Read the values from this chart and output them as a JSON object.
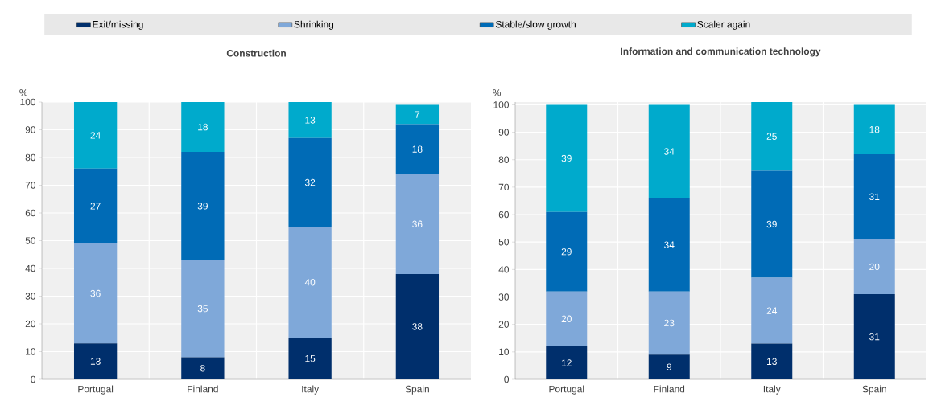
{
  "chart_data": [
    {
      "type": "bar",
      "stacked": true,
      "title": "Construction",
      "ylabel": "%",
      "categories": [
        "Portugal",
        "Finland",
        "Italy",
        "Spain"
      ],
      "series": [
        {
          "name": "Exit/missing",
          "color": "#002f6c",
          "values": [
            13,
            8,
            15,
            38
          ]
        },
        {
          "name": "Shrinking",
          "color": "#7fa8d9",
          "values": [
            36,
            35,
            40,
            36
          ]
        },
        {
          "name": "Stable/slow growth",
          "color": "#006bb6",
          "values": [
            27,
            39,
            32,
            18
          ]
        },
        {
          "name": "Scaler again",
          "color": "#00aacc",
          "values": [
            24,
            18,
            13,
            7
          ]
        }
      ],
      "ylim": [
        0,
        100
      ],
      "yticks": [
        0,
        10,
        20,
        30,
        40,
        50,
        60,
        70,
        80,
        90,
        100
      ],
      "data_labels": true,
      "grid": true,
      "legend": "top"
    },
    {
      "type": "bar",
      "stacked": true,
      "title": "Information and communication technology",
      "ylabel": "%",
      "categories": [
        "Portugal",
        "Finland",
        "Italy",
        "Spain"
      ],
      "series": [
        {
          "color": "#002f6c",
          "values": [
            12,
            9,
            13,
            31
          ]
        },
        {
          "color": "#7fa8d9",
          "values": [
            20,
            23,
            24,
            20
          ]
        },
        {
          "color": "#006bb6",
          "values": [
            29,
            34,
            39,
            31
          ]
        },
        {
          "color": "#00aacc",
          "values": [
            39,
            34,
            25,
            18
          ]
        }
      ],
      "ylim": [
        0,
        101
      ],
      "yticks": [
        0,
        10,
        20,
        30,
        40,
        50,
        60,
        70,
        80,
        90,
        100
      ],
      "data_labels": true,
      "grid": true
    }
  ]
}
